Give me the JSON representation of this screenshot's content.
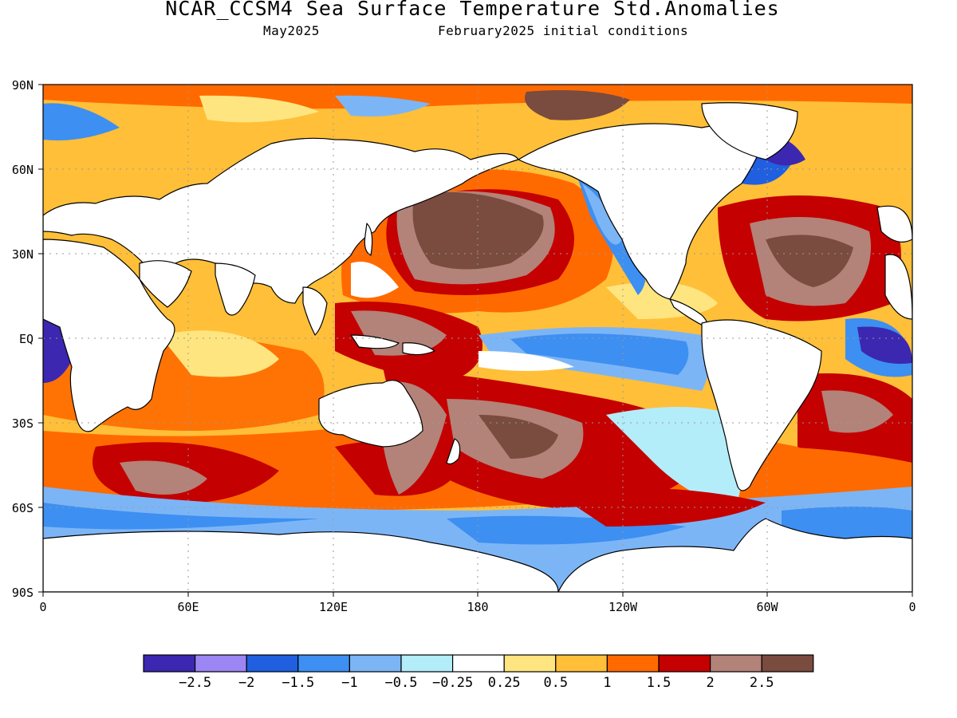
{
  "figure": {
    "title": "NCAR_CCSM4 Sea Surface Temperature Std.Anomalies",
    "valid_month": "May2025",
    "initial_conditions": "February2025 initial conditions"
  },
  "axes": {
    "lat_labels": [
      "90N",
      "60N",
      "30N",
      "EQ",
      "30S",
      "60S",
      "90S"
    ],
    "lon_labels": [
      "0",
      "60E",
      "120E",
      "180",
      "120W",
      "60W",
      "0"
    ]
  },
  "colorbar": {
    "levels": [
      "-2.5",
      "-2",
      "-1.5",
      "-1",
      "-0.5",
      "-0.25",
      "0.25",
      "0.5",
      "1",
      "1.5",
      "2",
      "2.5"
    ],
    "colors": [
      "#3b27b0",
      "#9b86f4",
      "#1f5fe0",
      "#3d8ff2",
      "#7cb5f6",
      "#b3edf9",
      "#ffffff",
      "#ffe580",
      "#ffbf38",
      "#ff6a00",
      "#c40000",
      "#b38279",
      "#7a4b3f"
    ]
  },
  "colors": {
    "land": "#ffffff",
    "grid": "#9a9a9a"
  }
}
